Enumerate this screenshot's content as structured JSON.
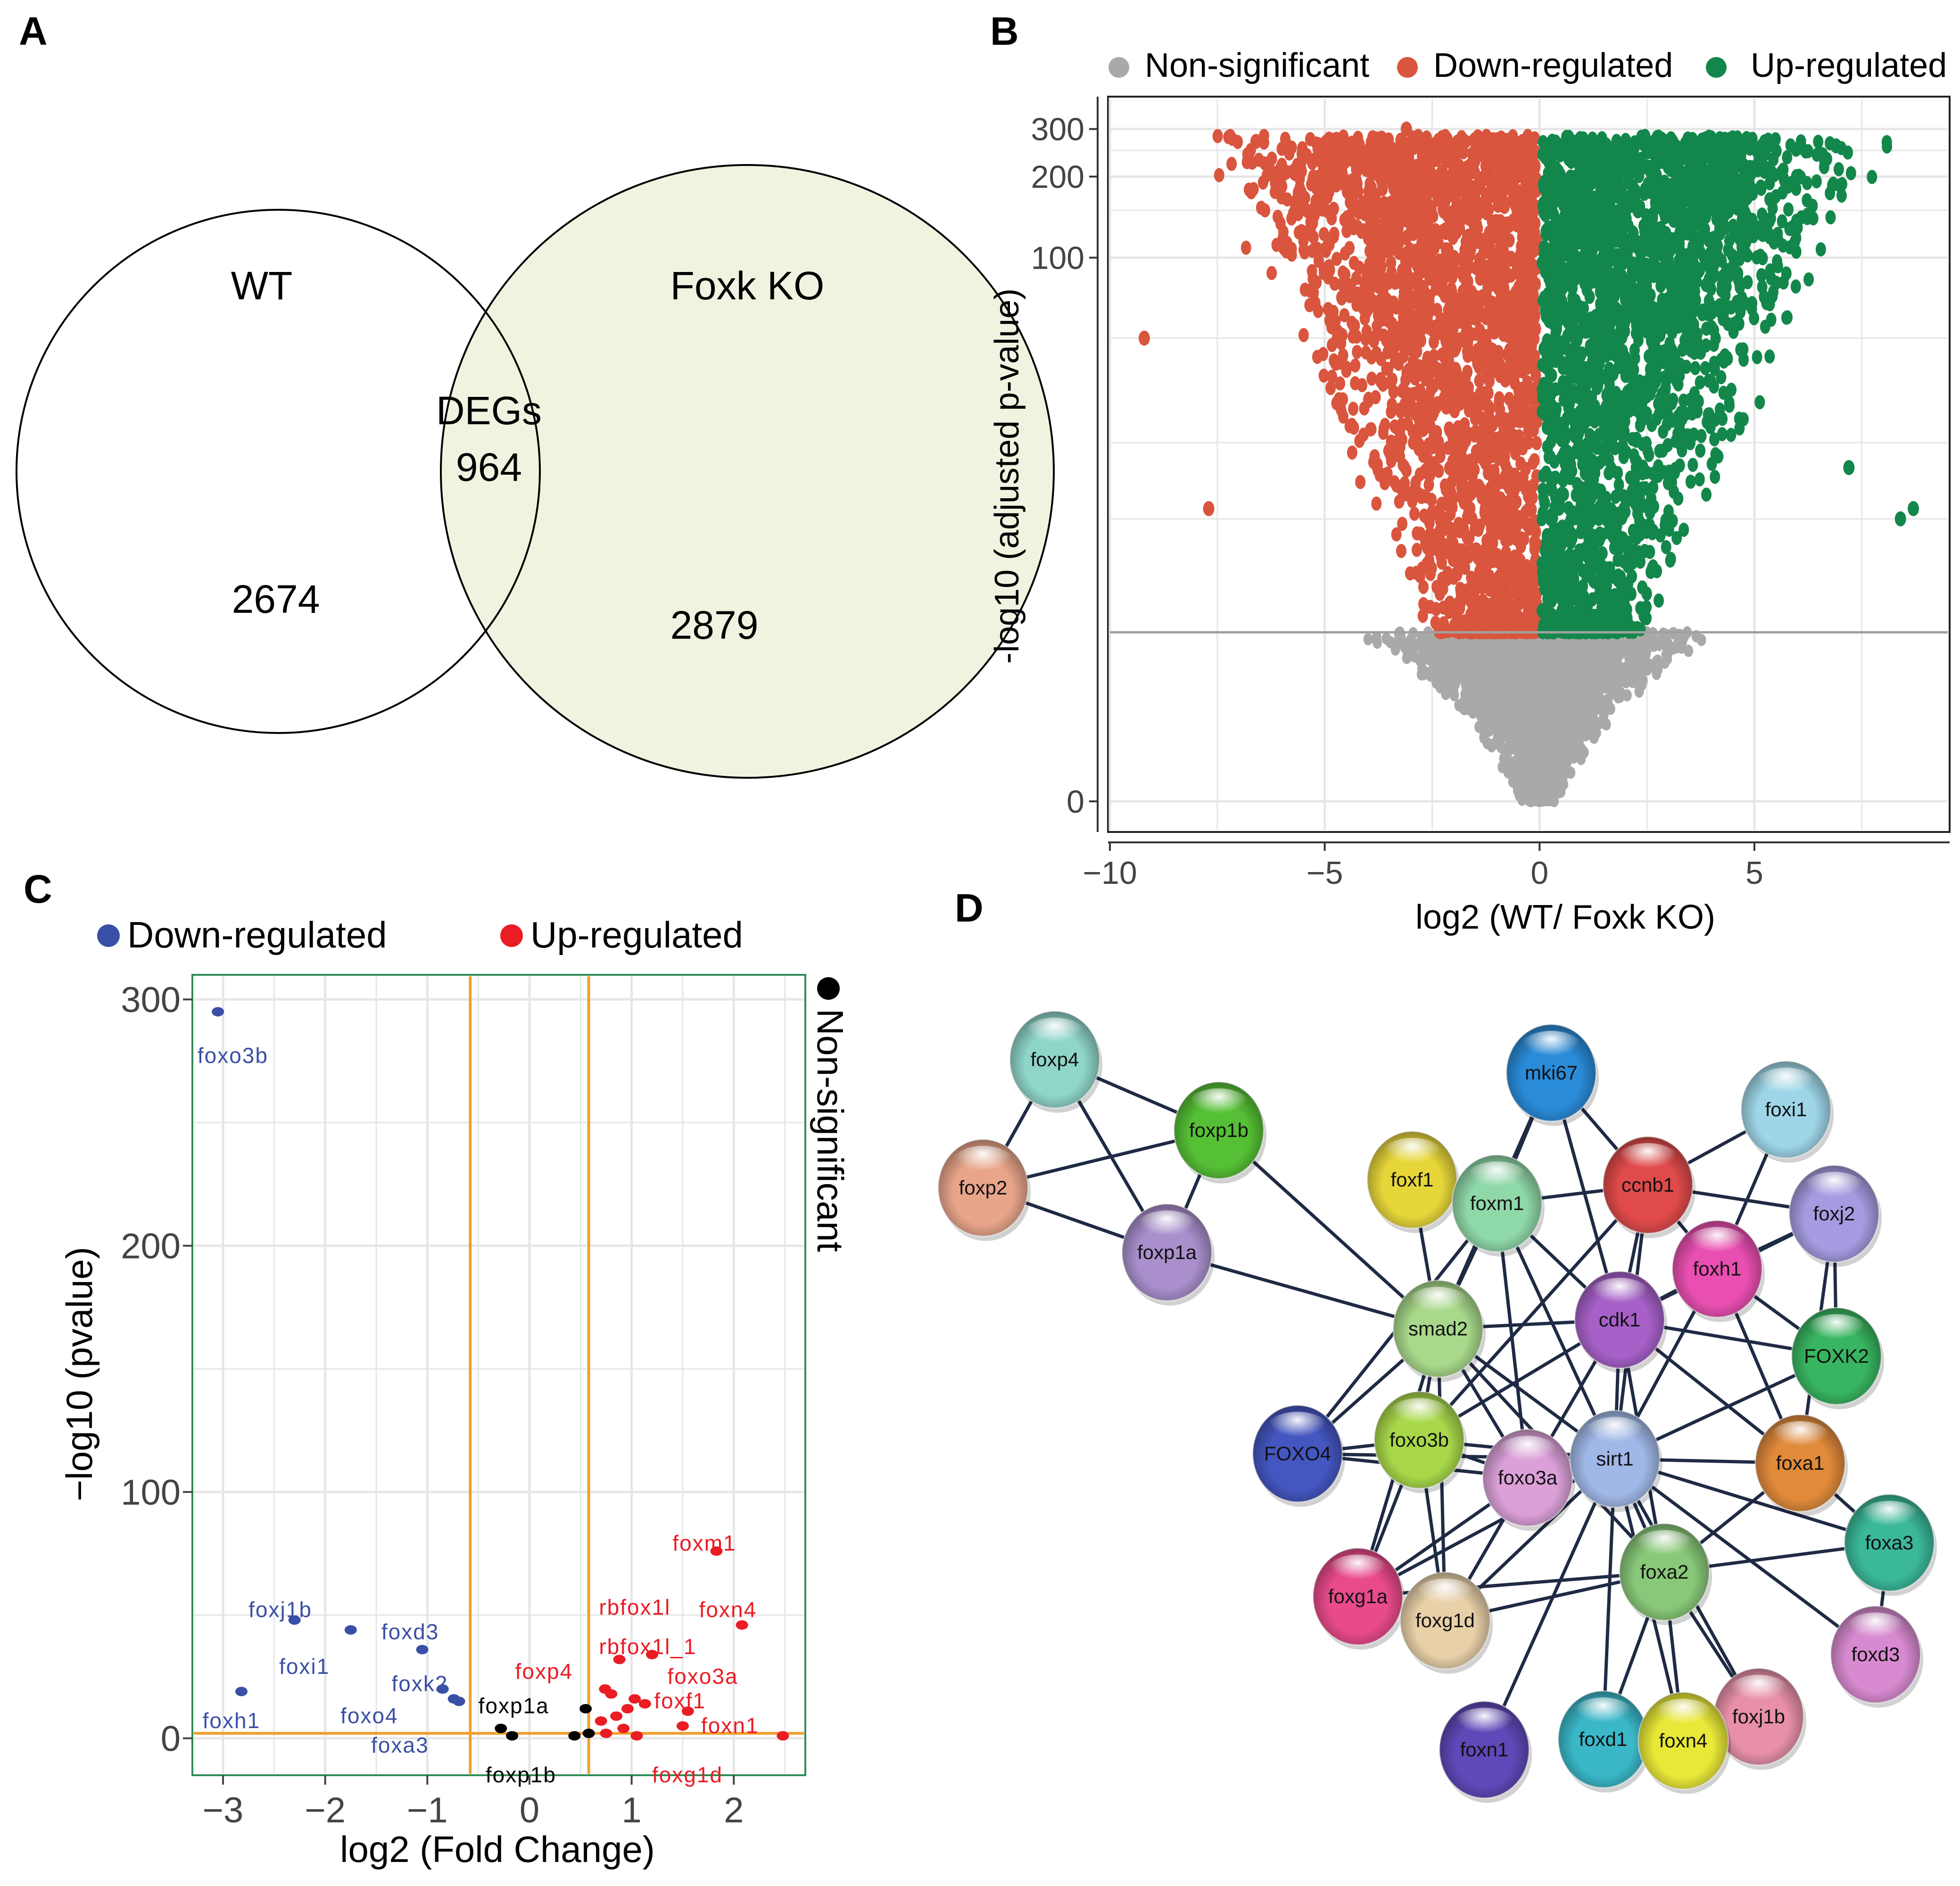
{
  "colors": {
    "venn_fill": "#eef4df",
    "venn_stroke": "#000000",
    "nonsig": "#a9a9a9",
    "down": "#d9553e",
    "up": "#13874b",
    "c_down": "#3a4fa6",
    "c_up": "#ea1c24",
    "c_ns": "#000000",
    "c_border": "#2e8b57",
    "c_cut": "#f0a030",
    "grid": "#e6e6e6"
  },
  "panel_labels": {
    "a": "A",
    "b": "B",
    "c": "C",
    "d": "D"
  },
  "venn": {
    "left_label": "WT",
    "right_label": "Foxk KO",
    "overlap_title": "DEGs",
    "overlap_count": "964",
    "left_count": "2674",
    "right_count": "2879"
  },
  "chart_data": [
    {
      "id": "volcano_b",
      "type": "scatter",
      "xlabel": "log2 (WT/ Foxk KO)",
      "ylabel": "-log10 (adjusted p-value)",
      "xlim": [
        -10,
        9.5
      ],
      "x_ticks": [
        -10,
        -5,
        0,
        5
      ],
      "x_tick_labels": [
        "−10",
        "−5",
        "0",
        "5"
      ],
      "y_scale": "log1p",
      "y_ticks": [
        0,
        100,
        200,
        300
      ],
      "y_tick_labels": [
        "0",
        "100",
        "200",
        "300"
      ],
      "significance_cutoff": 3.2,
      "legend": [
        {
          "label": "Non-significant",
          "color": "#a9a9a9"
        },
        {
          "label": "Down-regulated",
          "color": "#d9553e"
        },
        {
          "label": "Up-regulated",
          "color": "#13874b"
        }
      ],
      "legend_position": "top",
      "series_extents": {
        "down": {
          "x_range": [
            -9.2,
            -0.05
          ],
          "y_range": [
            3.2,
            300
          ]
        },
        "up": {
          "x_range": [
            0.05,
            8.7
          ],
          "y_range": [
            3.2,
            260
          ]
        },
        "nonsig": {
          "x_range": [
            -4.5,
            4.6
          ],
          "y_range": [
            0,
            3.2
          ]
        }
      },
      "outliers": [
        {
          "x": -9.2,
          "y": 50,
          "group": "down"
        },
        {
          "x": -7.7,
          "y": 11,
          "group": "down"
        },
        {
          "x": -6.6,
          "y": 270,
          "group": "down"
        },
        {
          "x": -4.9,
          "y": 275,
          "group": "down"
        },
        {
          "x": -3.1,
          "y": 300,
          "group": "down"
        },
        {
          "x": 4.4,
          "y": 240,
          "group": "up"
        },
        {
          "x": 6.9,
          "y": 260,
          "group": "up"
        },
        {
          "x": 7.2,
          "y": 16,
          "group": "up"
        },
        {
          "x": 8.4,
          "y": 10,
          "group": "up"
        },
        {
          "x": 8.7,
          "y": 11,
          "group": "up"
        }
      ]
    },
    {
      "id": "volcano_c",
      "type": "scatter",
      "xlabel": "log2 (Fold Change)",
      "ylabel": "−log10 (pvalue)",
      "xlim": [
        -3.3,
        2.7
      ],
      "ylim": [
        -15,
        310
      ],
      "x_ticks": [
        -3,
        -2,
        -1,
        0,
        1,
        2
      ],
      "x_tick_labels": [
        "−3",
        "−2",
        "−1",
        "0",
        "1",
        "2"
      ],
      "y_ticks": [
        0,
        100,
        200,
        300
      ],
      "y_tick_labels": [
        "0",
        "100",
        "200",
        "300"
      ],
      "fc_cutoffs": [
        -0.58,
        0.58
      ],
      "p_cutoff": 2,
      "legend": [
        {
          "label": "Down-regulated",
          "color": "#3a4fa6"
        },
        {
          "label": "Up-regulated",
          "color": "#ea1c24"
        },
        {
          "label": "Non-significant",
          "color": "#000000"
        }
      ],
      "points": [
        {
          "x": -3.05,
          "y": 295,
          "group": "down"
        },
        {
          "x": -2.3,
          "y": 48,
          "group": "down"
        },
        {
          "x": -1.75,
          "y": 44,
          "group": "down"
        },
        {
          "x": -1.05,
          "y": 36,
          "group": "down"
        },
        {
          "x": -2.82,
          "y": 19,
          "group": "down"
        },
        {
          "x": -0.85,
          "y": 20,
          "group": "down"
        },
        {
          "x": -0.74,
          "y": 16,
          "group": "down"
        },
        {
          "x": -0.69,
          "y": 15,
          "group": "down"
        },
        {
          "x": 0.55,
          "y": 12,
          "group": "ns"
        },
        {
          "x": -0.28,
          "y": 4,
          "group": "ns"
        },
        {
          "x": -0.17,
          "y": 1,
          "group": "ns"
        },
        {
          "x": 0.44,
          "y": 1,
          "group": "ns"
        },
        {
          "x": 0.58,
          "y": 2,
          "group": "ns"
        },
        {
          "x": 1.83,
          "y": 76,
          "group": "up"
        },
        {
          "x": 2.08,
          "y": 46,
          "group": "up"
        },
        {
          "x": 1.2,
          "y": 34,
          "group": "up"
        },
        {
          "x": 0.88,
          "y": 32,
          "group": "up"
        },
        {
          "x": 0.74,
          "y": 20,
          "group": "up"
        },
        {
          "x": 0.8,
          "y": 18,
          "group": "up"
        },
        {
          "x": 1.03,
          "y": 16,
          "group": "up"
        },
        {
          "x": 1.13,
          "y": 14,
          "group": "up"
        },
        {
          "x": 0.96,
          "y": 12,
          "group": "up"
        },
        {
          "x": 1.55,
          "y": 11,
          "group": "up"
        },
        {
          "x": 0.85,
          "y": 9,
          "group": "up"
        },
        {
          "x": 0.7,
          "y": 7,
          "group": "up"
        },
        {
          "x": 1.5,
          "y": 5,
          "group": "up"
        },
        {
          "x": 0.92,
          "y": 4,
          "group": "up"
        },
        {
          "x": 0.75,
          "y": 2,
          "group": "up"
        },
        {
          "x": 1.05,
          "y": 1,
          "group": "up"
        },
        {
          "x": 2.48,
          "y": 1,
          "group": "up"
        }
      ],
      "labels": [
        {
          "text": "foxo3b",
          "x": -3.25,
          "y": 278,
          "group": "down"
        },
        {
          "text": "foxj1b",
          "x": -2.75,
          "y": 53,
          "group": "down"
        },
        {
          "text": "foxd3",
          "x": -1.45,
          "y": 44,
          "group": "down"
        },
        {
          "text": "foxi1",
          "x": -2.45,
          "y": 30,
          "group": "down"
        },
        {
          "text": "foxk2",
          "x": -1.35,
          "y": 23,
          "group": "down"
        },
        {
          "text": "foxh1",
          "x": -3.2,
          "y": 8,
          "group": "down"
        },
        {
          "text": "foxo4",
          "x": -1.85,
          "y": 10,
          "group": "down"
        },
        {
          "text": "foxa3",
          "x": -1.55,
          "y": -2,
          "group": "down"
        },
        {
          "text": "foxm1",
          "x": 1.4,
          "y": 80,
          "group": "up"
        },
        {
          "text": "rbfox1l",
          "x": 0.68,
          "y": 54,
          "group": "up"
        },
        {
          "text": "foxn4",
          "x": 1.66,
          "y": 53,
          "group": "up"
        },
        {
          "text": "rbfox1l_1",
          "x": 0.68,
          "y": 38,
          "group": "up"
        },
        {
          "text": "foxp4",
          "x": -0.14,
          "y": 28,
          "group": "up"
        },
        {
          "text": "foxo3a",
          "x": 1.35,
          "y": 26,
          "group": "up"
        },
        {
          "text": "foxf1",
          "x": 1.22,
          "y": 16,
          "group": "up"
        },
        {
          "text": "foxn1",
          "x": 1.68,
          "y": 6,
          "group": "up"
        },
        {
          "text": "foxp1a",
          "x": -0.5,
          "y": 14,
          "group": "ns"
        },
        {
          "text": "foxp1b",
          "x": -0.43,
          "y": -14,
          "group": "ns"
        },
        {
          "text": "foxg1d",
          "x": 1.2,
          "y": -14,
          "group": "up"
        }
      ]
    }
  ],
  "network": {
    "nodes": [
      {
        "id": "foxp4",
        "color": "#8fd5c8"
      },
      {
        "id": "foxp1b",
        "color": "#55c035"
      },
      {
        "id": "foxp2",
        "color": "#e8a58a"
      },
      {
        "id": "foxp1a",
        "color": "#a98fcc"
      },
      {
        "id": "mki67",
        "color": "#2a8bd8"
      },
      {
        "id": "foxi1",
        "color": "#9ed6e8"
      },
      {
        "id": "foxf1",
        "color": "#e7d63a"
      },
      {
        "id": "foxm1",
        "color": "#8fd8a8"
      },
      {
        "id": "ccnb1",
        "color": "#e04a4a"
      },
      {
        "id": "foxj2",
        "color": "#a49be0"
      },
      {
        "id": "foxh1",
        "color": "#e84fb0"
      },
      {
        "id": "smad2",
        "color": "#a8d88a"
      },
      {
        "id": "cdk1",
        "color": "#a660c8"
      },
      {
        "id": "FOXK2",
        "color": "#38b560"
      },
      {
        "id": "FOXO4",
        "color": "#4456c0"
      },
      {
        "id": "foxo3b",
        "color": "#a8d84a"
      },
      {
        "id": "foxo3a",
        "color": "#dba0d8"
      },
      {
        "id": "sirt1",
        "color": "#a0b8e8"
      },
      {
        "id": "foxa1",
        "color": "#e08a3a"
      },
      {
        "id": "foxa3",
        "color": "#3ab898"
      },
      {
        "id": "foxa2",
        "color": "#88c878"
      },
      {
        "id": "foxg1a",
        "color": "#e84a8a"
      },
      {
        "id": "foxg1d",
        "color": "#e8d0a8"
      },
      {
        "id": "foxd3",
        "color": "#d88ad0"
      },
      {
        "id": "foxj1b",
        "color": "#e890a8"
      },
      {
        "id": "foxn1",
        "color": "#6048b8"
      },
      {
        "id": "foxd1",
        "color": "#3ab8c8"
      },
      {
        "id": "foxn4",
        "color": "#e8e838"
      }
    ],
    "edges": [
      [
        "foxp4",
        "foxp1b"
      ],
      [
        "foxp4",
        "foxp2"
      ],
      [
        "foxp4",
        "foxp1a"
      ],
      [
        "foxp2",
        "foxp1b"
      ],
      [
        "foxp2",
        "foxp1a"
      ],
      [
        "foxp1b",
        "foxp1a"
      ],
      [
        "foxp1b",
        "smad2"
      ],
      [
        "foxp1a",
        "smad2"
      ],
      [
        "mki67",
        "foxm1"
      ],
      [
        "mki67",
        "ccnb1"
      ],
      [
        "mki67",
        "cdk1"
      ],
      [
        "mki67",
        "smad2"
      ],
      [
        "foxi1",
        "ccnb1"
      ],
      [
        "foxi1",
        "foxh1"
      ],
      [
        "foxf1",
        "smad2"
      ],
      [
        "foxf1",
        "foxm1"
      ],
      [
        "foxm1",
        "smad2"
      ],
      [
        "foxm1",
        "ccnb1"
      ],
      [
        "foxm1",
        "cdk1"
      ],
      [
        "foxm1",
        "foxo3a"
      ],
      [
        "foxm1",
        "sirt1"
      ],
      [
        "foxm1",
        "FOXO4"
      ],
      [
        "ccnb1",
        "cdk1"
      ],
      [
        "ccnb1",
        "foxh1"
      ],
      [
        "ccnb1",
        "foxj2"
      ],
      [
        "ccnb1",
        "sirt1"
      ],
      [
        "ccnb1",
        "foxo3b"
      ],
      [
        "foxj2",
        "foxh1"
      ],
      [
        "foxj2",
        "cdk1"
      ],
      [
        "foxj2",
        "FOXK2"
      ],
      [
        "foxj2",
        "foxa1"
      ],
      [
        "foxh1",
        "cdk1"
      ],
      [
        "foxh1",
        "sirt1"
      ],
      [
        "foxh1",
        "FOXK2"
      ],
      [
        "foxh1",
        "foxa1"
      ],
      [
        "smad2",
        "cdk1"
      ],
      [
        "smad2",
        "FOXO4"
      ],
      [
        "smad2",
        "foxo3b"
      ],
      [
        "smad2",
        "foxo3a"
      ],
      [
        "smad2",
        "sirt1"
      ],
      [
        "smad2",
        "foxg1a"
      ],
      [
        "smad2",
        "foxg1d"
      ],
      [
        "smad2",
        "foxa2"
      ],
      [
        "cdk1",
        "foxo3b"
      ],
      [
        "cdk1",
        "foxo3a"
      ],
      [
        "cdk1",
        "sirt1"
      ],
      [
        "cdk1",
        "foxa1"
      ],
      [
        "cdk1",
        "foxa2"
      ],
      [
        "cdk1",
        "FOXK2"
      ],
      [
        "FOXO4",
        "foxo3b"
      ],
      [
        "FOXO4",
        "foxo3a"
      ],
      [
        "FOXO4",
        "sirt1"
      ],
      [
        "foxo3b",
        "foxo3a"
      ],
      [
        "foxo3b",
        "sirt1"
      ],
      [
        "foxo3b",
        "foxg1a"
      ],
      [
        "foxo3b",
        "foxg1d"
      ],
      [
        "foxo3a",
        "sirt1"
      ],
      [
        "foxo3a",
        "foxg1a"
      ],
      [
        "foxo3a",
        "foxg1d"
      ],
      [
        "sirt1",
        "foxa1"
      ],
      [
        "sirt1",
        "foxa3"
      ],
      [
        "sirt1",
        "foxa2"
      ],
      [
        "sirt1",
        "foxd3"
      ],
      [
        "sirt1",
        "foxn1"
      ],
      [
        "sirt1",
        "foxd1"
      ],
      [
        "sirt1",
        "foxn4"
      ],
      [
        "sirt1",
        "foxj1b"
      ],
      [
        "sirt1",
        "foxg1a"
      ],
      [
        "sirt1",
        "foxg1d"
      ],
      [
        "sirt1",
        "FOXK2"
      ],
      [
        "foxa1",
        "foxa2"
      ],
      [
        "foxa1",
        "foxa3"
      ],
      [
        "foxa2",
        "foxa3"
      ],
      [
        "foxa2",
        "foxg1d"
      ],
      [
        "foxa2",
        "foxd1"
      ],
      [
        "foxa2",
        "foxn4"
      ],
      [
        "foxa2",
        "foxj1b"
      ],
      [
        "foxa2",
        "foxg1a"
      ],
      [
        "foxa3",
        "foxd3"
      ],
      [
        "foxg1a",
        "foxg1d"
      ]
    ]
  }
}
